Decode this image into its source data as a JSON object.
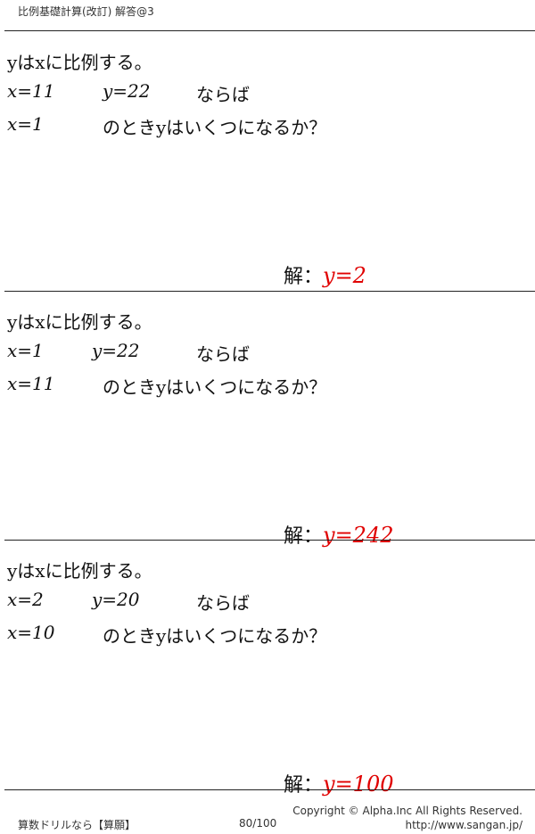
{
  "header": {
    "title": "比例基礎計算(改訂) 解答@3"
  },
  "problems": [
    {
      "statement": "yはxに比例する。",
      "x1": "x=11",
      "y1": "y=22",
      "cond": "ならば",
      "x2": "x=1",
      "question": "のときyはいくつになるか？",
      "answer_label": "解：",
      "answer": "y=2"
    },
    {
      "statement": "yはxに比例する。",
      "x1": "x=1",
      "y1": "y=22",
      "cond": "ならば",
      "x2": "x=11",
      "question": "のときyはいくつになるか？",
      "answer_label": "解：",
      "answer": "y=242"
    },
    {
      "statement": "yはxに比例する。",
      "x1": "x=2",
      "y1": "y=20",
      "cond": "ならば",
      "x2": "x=10",
      "question": "のときyはいくつになるか？",
      "answer_label": "解：",
      "answer": "y=100"
    }
  ],
  "footer": {
    "brand": "算数ドリルなら【算願】",
    "page": "80/100",
    "copyright": "Copyright ©  Alpha.Inc All Rights Reserved.",
    "url": "http://www.sangan.jp/"
  },
  "colors": {
    "answer": "#e00000"
  }
}
